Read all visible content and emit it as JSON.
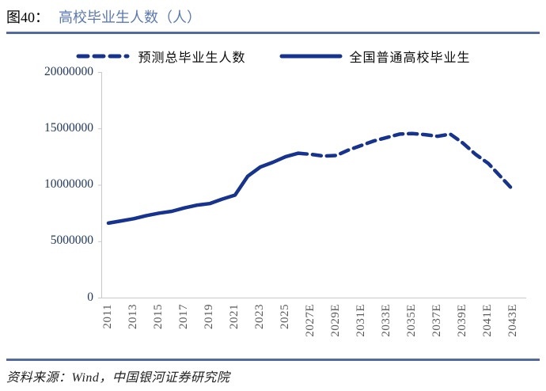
{
  "header": {
    "figure_label": "图40：",
    "figure_title": "高校毕业生人数（人）"
  },
  "legend": {
    "items": [
      {
        "label": "预测总毕业生人数",
        "style": "dashed"
      },
      {
        "label": "全国普通高校毕业生",
        "style": "solid"
      }
    ]
  },
  "footer": {
    "text": "资料来源：Wind，中国银河证券研究院"
  },
  "colors": {
    "series_line": "#16348F",
    "y_tick_label": "#1F3864",
    "x_tick_label": "#595959",
    "title_accent": "#5B79B5",
    "rule": "#54699E",
    "axis_line": "#C8C8C8"
  },
  "chart_data": {
    "type": "line",
    "title": "高校毕业生人数（人）",
    "ylabel": "",
    "xlabel": "",
    "ylim": [
      0,
      20000000
    ],
    "ytick_values": [
      0,
      5000000,
      10000000,
      15000000,
      20000000
    ],
    "ytick_labels": [
      "0",
      "5000000",
      "10000000",
      "15000000",
      "20000000"
    ],
    "xtick_years": [
      2011,
      2013,
      2015,
      2017,
      2019,
      2021,
      2023,
      2025,
      2027,
      2029,
      2031,
      2033,
      2035,
      2037,
      2039,
      2041,
      2043
    ],
    "xtick_labels": [
      "2011",
      "2013",
      "2015",
      "2017",
      "2019",
      "2021",
      "2023",
      "2025",
      "2027E",
      "2029E",
      "2031E",
      "2033E",
      "2035E",
      "2037E",
      "2039E",
      "2041E",
      "2043E"
    ],
    "x_range": [
      2011,
      2043
    ],
    "grid": false,
    "legend_position": "top",
    "series": [
      {
        "name": "全国普通高校毕业生",
        "style": "solid",
        "x": [
          2011,
          2012,
          2013,
          2014,
          2015,
          2016,
          2017,
          2018,
          2019,
          2020,
          2021,
          2022,
          2023,
          2024,
          2025,
          2026
        ],
        "values": [
          6600000,
          6800000,
          7000000,
          7270000,
          7490000,
          7650000,
          7950000,
          8200000,
          8340000,
          8740000,
          9090000,
          10760000,
          11580000,
          12000000,
          12500000,
          12800000
        ]
      },
      {
        "name": "预测总毕业生人数",
        "style": "dashed",
        "x": [
          2026,
          2027,
          2028,
          2029,
          2030,
          2031,
          2032,
          2033,
          2034,
          2035,
          2036,
          2037,
          2038,
          2039,
          2040,
          2041,
          2042,
          2043
        ],
        "values": [
          12800000,
          12700000,
          12550000,
          12600000,
          13100000,
          13500000,
          13900000,
          14200000,
          14500000,
          14550000,
          14450000,
          14300000,
          14500000,
          13700000,
          12700000,
          11900000,
          10700000,
          9500000
        ]
      }
    ]
  }
}
